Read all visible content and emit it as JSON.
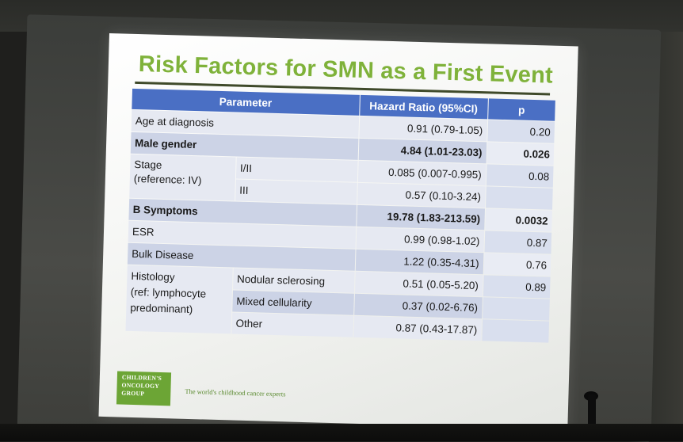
{
  "slide": {
    "title": "Risk Factors for SMN as a First Event",
    "headers": {
      "parameter": "Parameter",
      "hazard_ratio": "Hazard Ratio (95%CI)",
      "p": "p"
    },
    "rows": {
      "age": {
        "label": "Age at diagnosis",
        "hr": "0.91 (0.79-1.05)",
        "p": "0.20"
      },
      "male": {
        "label": "Male gender",
        "hr": "4.84 (1.01-23.03)",
        "p": "0.026"
      },
      "stage": {
        "label_line1": "Stage",
        "label_line2": "(reference: IV)",
        "sub1": {
          "label": "I/II",
          "hr": "0.085 (0.007-0.995)",
          "p": "0.08"
        },
        "sub2": {
          "label": "III",
          "hr": "0.57 (0.10-3.24)"
        }
      },
      "bsymptoms": {
        "label": "B Symptoms",
        "hr": "19.78 (1.83-213.59)",
        "p": "0.0032"
      },
      "esr": {
        "label": "ESR",
        "hr": "0.99 (0.98-1.02)",
        "p": "0.87"
      },
      "bulk": {
        "label": "Bulk Disease",
        "hr": "1.22 (0.35-4.31)",
        "p": "0.76"
      },
      "histology": {
        "label_line1": "Histology",
        "label_line2": "(ref: lymphocyte",
        "label_line3": "predominant)",
        "sub1": {
          "label": "Nodular sclerosing",
          "hr": "0.51 (0.05-5.20)",
          "p": "0.89"
        },
        "sub2": {
          "label": "Mixed cellularity",
          "hr": "0.37 (0.02-6.76)"
        },
        "sub3": {
          "label": "Other",
          "hr": "0.87 (0.43-17.87)"
        }
      }
    },
    "logo": {
      "line1": "CHILDREN'S",
      "line2": "ONCOLOGY",
      "line3": "GROUP"
    },
    "tagline": "The world's childhood cancer experts"
  }
}
